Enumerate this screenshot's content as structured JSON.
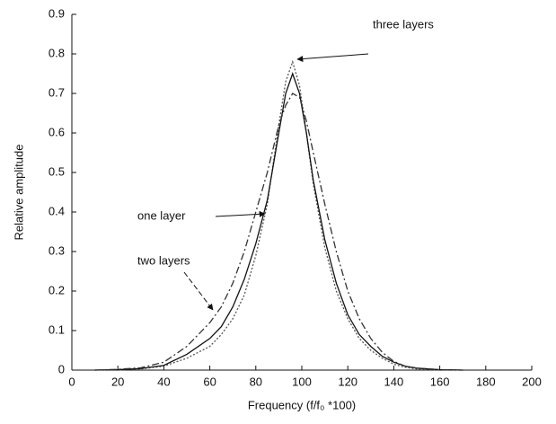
{
  "chart_data": {
    "type": "line",
    "xlabel": "Frequency (f/f₀ *100)",
    "ylabel": "Relative amplitude",
    "x": [
      10,
      20,
      30,
      40,
      50,
      60,
      65,
      70,
      75,
      80,
      85,
      90,
      93,
      96,
      99,
      102,
      105,
      110,
      115,
      120,
      125,
      130,
      135,
      140,
      145,
      150,
      160,
      170
    ],
    "series": [
      {
        "name": "three layers",
        "color": "#555555",
        "style": "dotted",
        "values": [
          0,
          0,
          0.003,
          0.01,
          0.03,
          0.06,
          0.09,
          0.13,
          0.19,
          0.29,
          0.42,
          0.62,
          0.73,
          0.78,
          0.72,
          0.6,
          0.47,
          0.31,
          0.2,
          0.13,
          0.08,
          0.05,
          0.03,
          0.015,
          0.007,
          0.003,
          0,
          0
        ]
      },
      {
        "name": "one layer",
        "color": "#111111",
        "style": "solid",
        "values": [
          0,
          0.001,
          0.004,
          0.012,
          0.04,
          0.08,
          0.11,
          0.16,
          0.23,
          0.32,
          0.43,
          0.6,
          0.7,
          0.75,
          0.7,
          0.6,
          0.48,
          0.33,
          0.22,
          0.14,
          0.09,
          0.06,
          0.035,
          0.02,
          0.01,
          0.005,
          0.001,
          0
        ]
      },
      {
        "name": "two layers",
        "color": "#333333",
        "style": "dashdot",
        "values": [
          0,
          0.002,
          0.006,
          0.02,
          0.06,
          0.12,
          0.16,
          0.22,
          0.3,
          0.4,
          0.5,
          0.62,
          0.67,
          0.7,
          0.69,
          0.63,
          0.55,
          0.42,
          0.3,
          0.2,
          0.13,
          0.08,
          0.045,
          0.022,
          0.01,
          0.005,
          0.001,
          0
        ]
      }
    ],
    "xlim": [
      0,
      200
    ],
    "xticks": [
      0,
      20,
      40,
      60,
      80,
      100,
      120,
      140,
      160,
      180,
      200
    ],
    "ylim": [
      0,
      0.9
    ],
    "yticks": [
      0,
      0.1,
      0.2,
      0.3,
      0.4,
      0.5,
      0.6,
      0.7,
      0.8,
      0.9
    ],
    "grid": false
  }
}
